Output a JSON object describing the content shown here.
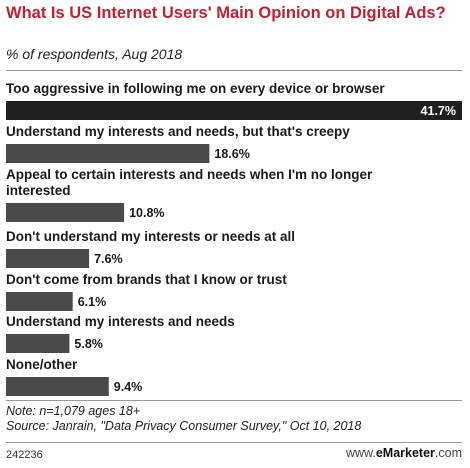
{
  "header": {
    "title": "What Is US Internet Users' Main Opinion on Digital Ads?",
    "subtitle": "% of respondents, Aug 2018"
  },
  "chart_data": {
    "type": "bar",
    "orientation": "horizontal",
    "categories": [
      "Too aggressive in following me on every device or browser",
      "Understand my interests and needs, but that's creepy",
      "Appeal to certain interests and needs when I'm no longer interested",
      "Don't understand my interests or needs at all",
      "Don't come from brands that I know or trust",
      "Understand my interests and needs",
      "None/other"
    ],
    "values": [
      41.7,
      18.6,
      10.8,
      7.6,
      6.1,
      5.8,
      9.4
    ],
    "value_labels": [
      "41.7%",
      "18.6%",
      "10.8%",
      "7.6%",
      "6.1%",
      "5.8%",
      "9.4%"
    ],
    "unit": "%",
    "bar_color": "#4a4a4a",
    "highlight_bar_color": "#1f1f1f"
  },
  "footer": {
    "note": "Note: n=1,079 ages 18+",
    "source": "Source: Janrain, \"Data Privacy Consumer Survey,\" Oct 10, 2018",
    "chart_id": "242236",
    "brand_prefix": "www.",
    "brand_name": "eMarketer",
    "brand_suffix": ".com"
  }
}
